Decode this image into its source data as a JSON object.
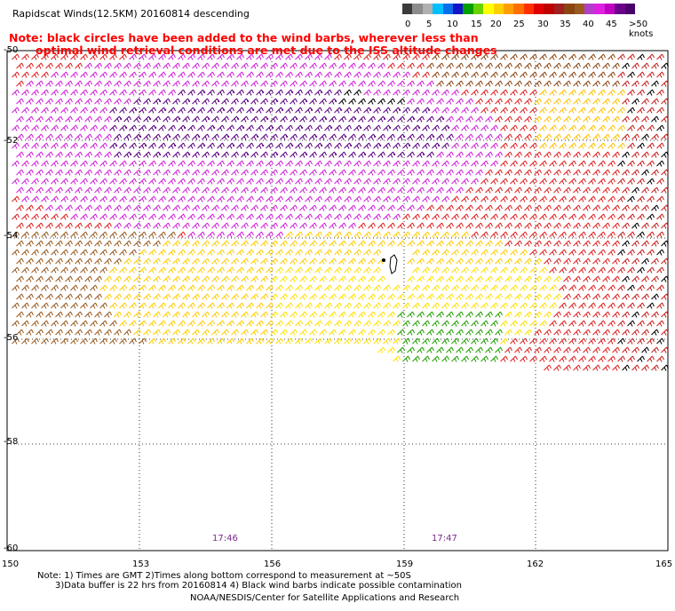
{
  "title": "Rapidscat Winds(12.5KM) 20160814 descending",
  "note_line1": "Note: black circles have been added to the wind barbs, wherever less than",
  "note_line2": "optimal wind retrieval conditions are met due to the ISS altitude changes",
  "legend": {
    "colors": [
      "#3a3a3a",
      "#8c8c8c",
      "#b0b0b0",
      "#00bfff",
      "#0a6eea",
      "#1414c8",
      "#00a000",
      "#6ad200",
      "#ffff00",
      "#ffd000",
      "#ffa000",
      "#ff7000",
      "#ff3000",
      "#e00000",
      "#c00000",
      "#a02020",
      "#8b4513",
      "#9a5a20",
      "#b040c8",
      "#e020e0",
      "#c000c0",
      "#6a008a",
      "#4a006a"
    ],
    "labels": [
      "0",
      "5",
      "10",
      "15",
      "20",
      "25",
      "30",
      "35",
      "40",
      "45",
      ">50 knots"
    ]
  },
  "lat_labels": [
    "-50",
    "-52",
    "-54",
    "-56",
    "-58",
    "-60"
  ],
  "lon_labels": [
    "150",
    "153",
    "156",
    "159",
    "162",
    "165"
  ],
  "times": [
    "17:46",
    "17:47"
  ],
  "footnotes": [
    "Note: 1) Times are GMT 2)Times along bottom correspond to measurement at ~50S",
    "3)Data buffer is 22 hrs from 20160814 4) Black wind barbs indicate possible contamination",
    "NOAA/NESDIS/Center for Satellite Applications and Research"
  ]
}
